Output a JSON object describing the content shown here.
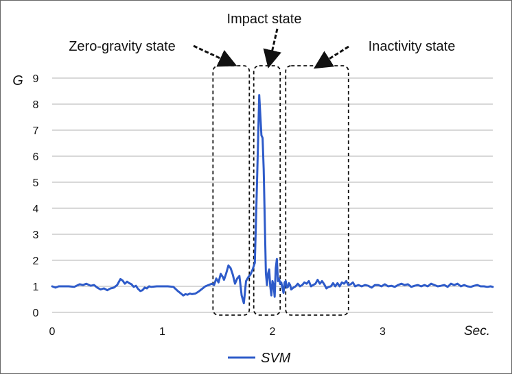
{
  "chart_data": {
    "type": "line",
    "ylabel": "G",
    "xlabel": "Sec.",
    "xlim": [
      0,
      4
    ],
    "ylim": [
      0,
      9
    ],
    "x_ticks": [
      "0",
      "1",
      "2",
      "3"
    ],
    "y_ticks": [
      "0",
      "1",
      "2",
      "3",
      "4",
      "5",
      "6",
      "7",
      "8",
      "9"
    ],
    "grid": "horizontal",
    "legend_position": "bottom",
    "colors": {
      "series": "#2e5bc9",
      "grid": "#b0b0b0",
      "annotation": "#111111",
      "frame": "#666666"
    },
    "annotations": [
      {
        "label": "Zero-gravity state",
        "x_range": [
          1.46,
          1.79
        ]
      },
      {
        "label": "Impact state",
        "x_range": [
          1.83,
          2.07
        ]
      },
      {
        "label": "Inactivity state",
        "x_range": [
          2.12,
          2.69
        ]
      }
    ],
    "series": [
      {
        "name": "SVM",
        "x": [
          0.0,
          0.03,
          0.06,
          0.1,
          0.15,
          0.2,
          0.25,
          0.28,
          0.31,
          0.35,
          0.38,
          0.41,
          0.44,
          0.47,
          0.5,
          0.53,
          0.56,
          0.59,
          0.62,
          0.64,
          0.66,
          0.68,
          0.7,
          0.72,
          0.74,
          0.76,
          0.78,
          0.8,
          0.82,
          0.84,
          0.86,
          0.88,
          0.9,
          0.95,
          1.0,
          1.05,
          1.1,
          1.14,
          1.17,
          1.19,
          1.21,
          1.23,
          1.25,
          1.27,
          1.3,
          1.33,
          1.36,
          1.39,
          1.42,
          1.45,
          1.47,
          1.49,
          1.51,
          1.53,
          1.55,
          1.56,
          1.58,
          1.6,
          1.62,
          1.64,
          1.66,
          1.68,
          1.7,
          1.72,
          1.74,
          1.76,
          1.78,
          1.8,
          1.82,
          1.84,
          1.86,
          1.88,
          1.9,
          1.91,
          1.92,
          1.93,
          1.94,
          1.95,
          1.96,
          1.97,
          1.98,
          1.99,
          2.0,
          2.01,
          2.02,
          2.03,
          2.04,
          2.05,
          2.06,
          2.07,
          2.08,
          2.09,
          2.1,
          2.11,
          2.12,
          2.13,
          2.14,
          2.15,
          2.16,
          2.17,
          2.19,
          2.21,
          2.23,
          2.25,
          2.27,
          2.29,
          2.31,
          2.33,
          2.35,
          2.37,
          2.39,
          2.41,
          2.43,
          2.45,
          2.47,
          2.49,
          2.51,
          2.53,
          2.55,
          2.57,
          2.59,
          2.61,
          2.63,
          2.65,
          2.67,
          2.69,
          2.71,
          2.73,
          2.75,
          2.78,
          2.81,
          2.84,
          2.87,
          2.9,
          2.93,
          2.96,
          2.99,
          3.02,
          3.05,
          3.08,
          3.11,
          3.14,
          3.17,
          3.2,
          3.23,
          3.26,
          3.29,
          3.32,
          3.35,
          3.38,
          3.41,
          3.44,
          3.47,
          3.5,
          3.53,
          3.56,
          3.59,
          3.62,
          3.65,
          3.68,
          3.71,
          3.74,
          3.77,
          3.8,
          3.83,
          3.86,
          3.89,
          3.92,
          3.95,
          3.98,
          4.0
        ],
        "values": [
          1.0,
          0.95,
          1.0,
          1.0,
          1.0,
          0.98,
          1.08,
          1.05,
          1.1,
          1.02,
          1.05,
          0.95,
          0.88,
          0.92,
          0.85,
          0.92,
          0.95,
          1.05,
          1.28,
          1.22,
          1.1,
          1.18,
          1.12,
          1.08,
          0.98,
          1.02,
          0.9,
          0.82,
          0.85,
          0.95,
          0.92,
          1.0,
          0.98,
          1.0,
          1.0,
          1.0,
          0.98,
          0.82,
          0.72,
          0.65,
          0.7,
          0.68,
          0.72,
          0.7,
          0.72,
          0.8,
          0.9,
          1.0,
          1.05,
          1.1,
          1.05,
          1.3,
          1.15,
          1.48,
          1.35,
          1.25,
          1.5,
          1.8,
          1.7,
          1.45,
          1.1,
          1.3,
          1.4,
          0.65,
          0.35,
          1.2,
          1.35,
          1.45,
          1.65,
          1.9,
          5.0,
          8.35,
          6.8,
          6.7,
          5.5,
          3.5,
          1.5,
          1.05,
          1.5,
          1.65,
          1.0,
          0.65,
          1.2,
          1.05,
          0.6,
          1.7,
          2.05,
          1.2,
          1.3,
          1.1,
          1.15,
          0.95,
          0.75,
          1.15,
          1.2,
          0.95,
          0.98,
          1.12,
          1.05,
          0.88,
          0.95,
          1.0,
          1.1,
          1.0,
          1.05,
          1.15,
          1.1,
          1.2,
          1.0,
          1.05,
          1.1,
          1.25,
          1.1,
          1.2,
          1.08,
          0.92,
          0.98,
          1.0,
          1.12,
          1.0,
          1.12,
          1.0,
          1.15,
          1.1,
          1.2,
          1.05,
          1.08,
          1.15,
          1.0,
          1.05,
          1.0,
          1.05,
          1.02,
          0.95,
          1.05,
          1.05,
          1.0,
          1.08,
          1.0,
          1.02,
          0.98,
          1.05,
          1.1,
          1.05,
          1.08,
          0.98,
          1.02,
          1.05,
          1.0,
          1.05,
          1.0,
          1.1,
          1.05,
          1.0,
          1.02,
          1.05,
          0.98,
          1.1,
          1.05,
          1.1,
          1.0,
          1.05,
          1.0,
          0.98,
          1.02,
          1.05,
          1.0,
          1.0,
          0.98,
          1.0,
          0.98
        ]
      }
    ]
  }
}
